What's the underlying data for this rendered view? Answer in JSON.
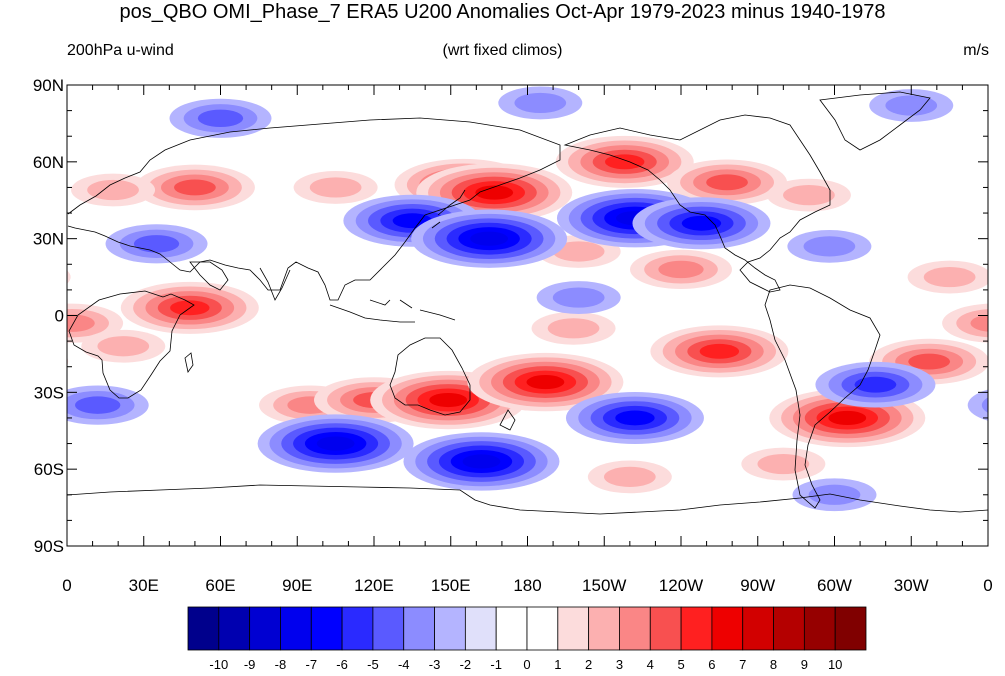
{
  "title": "pos_QBO OMI_Phase_7 ERA5 U200 Anomalies Oct-Apr 1979-2023 minus 1940-1978",
  "left_string": "200hPa u-wind",
  "center_string": "(wrt fixed climos)",
  "right_string": "m/s",
  "lat_tick_labels": [
    "90N",
    "60N",
    "30N",
    "0",
    "30S",
    "60S",
    "90S"
  ],
  "lon_tick_labels": [
    "0",
    "30E",
    "60E",
    "90E",
    "120E",
    "150E",
    "180",
    "150W",
    "120W",
    "90W",
    "60W",
    "30W",
    "0"
  ],
  "colorbar": {
    "labels": [
      "-10",
      "-9",
      "-8",
      "-7",
      "-6",
      "-5",
      "-4",
      "-3",
      "-2",
      "-1",
      "0",
      "1",
      "2",
      "3",
      "4",
      "5",
      "6",
      "7",
      "8",
      "9",
      "10"
    ],
    "colors": [
      "#00008c",
      "#0000b0",
      "#0000d2",
      "#0000ee",
      "#0000ff",
      "#2a2aff",
      "#5a5aff",
      "#8c8cff",
      "#b4b4ff",
      "#e0e0fa",
      "#ffffff",
      "#ffffff",
      "#fcdcdc",
      "#fcb0b0",
      "#fa8686",
      "#f85050",
      "#ff2020",
      "#ee0000",
      "#d20000",
      "#b40000",
      "#960000",
      "#800000"
    ]
  },
  "map_data": {
    "type": "filled-contour",
    "variable": "200hPa u-wind anomaly",
    "units": "m/s",
    "lon_range": [
      0,
      360
    ],
    "lat_range": [
      -90,
      90
    ],
    "anomaly_centers": [
      {
        "lon": 50,
        "lat": 50,
        "value": 4
      },
      {
        "lon": 18,
        "lat": 49,
        "value": 2
      },
      {
        "lon": 105,
        "lat": 50,
        "value": 2
      },
      {
        "lon": 155,
        "lat": 51,
        "value": 5
      },
      {
        "lon": 167,
        "lat": 48,
        "value": 6
      },
      {
        "lon": 218,
        "lat": 60,
        "value": 5
      },
      {
        "lon": 258,
        "lat": 52,
        "value": 4
      },
      {
        "lon": 290,
        "lat": 47,
        "value": 2
      },
      {
        "lon": 200,
        "lat": 25,
        "value": 2
      },
      {
        "lon": 240,
        "lat": 18,
        "value": 3
      },
      {
        "lon": 345,
        "lat": 15,
        "value": 2
      },
      {
        "lon": 48,
        "lat": 3,
        "value": 5
      },
      {
        "lon": 2,
        "lat": -3,
        "value": 3
      },
      {
        "lon": 255,
        "lat": -14,
        "value": 5
      },
      {
        "lon": 198,
        "lat": -5,
        "value": 2
      },
      {
        "lon": 337,
        "lat": -18,
        "value": 4
      },
      {
        "lon": 22,
        "lat": -12,
        "value": 2
      },
      {
        "lon": 95,
        "lat": -35,
        "value": 3
      },
      {
        "lon": 120,
        "lat": -33,
        "value": 4
      },
      {
        "lon": 149,
        "lat": -33,
        "value": 6
      },
      {
        "lon": 187,
        "lat": -26,
        "value": 6
      },
      {
        "lon": 305,
        "lat": -40,
        "value": 6
      },
      {
        "lon": 220,
        "lat": -63,
        "value": 2
      },
      {
        "lon": 280,
        "lat": -58,
        "value": 2
      },
      {
        "lon": 60,
        "lat": 77,
        "value": -3
      },
      {
        "lon": 330,
        "lat": 82,
        "value": -2
      },
      {
        "lon": 185,
        "lat": 83,
        "value": -2
      },
      {
        "lon": 135,
        "lat": 37,
        "value": -5
      },
      {
        "lon": 165,
        "lat": 30,
        "value": -6
      },
      {
        "lon": 222,
        "lat": 38,
        "value": -6
      },
      {
        "lon": 248,
        "lat": 36,
        "value": -5
      },
      {
        "lon": 35,
        "lat": 28,
        "value": -3
      },
      {
        "lon": 200,
        "lat": 7,
        "value": -2
      },
      {
        "lon": 298,
        "lat": 27,
        "value": -2
      },
      {
        "lon": 12,
        "lat": -35,
        "value": -3
      },
      {
        "lon": 105,
        "lat": -50,
        "value": -6
      },
      {
        "lon": 162,
        "lat": -57,
        "value": -6
      },
      {
        "lon": 222,
        "lat": -40,
        "value": -5
      },
      {
        "lon": 316,
        "lat": -27,
        "value": -4
      },
      {
        "lon": 300,
        "lat": -70,
        "value": -2
      }
    ]
  }
}
